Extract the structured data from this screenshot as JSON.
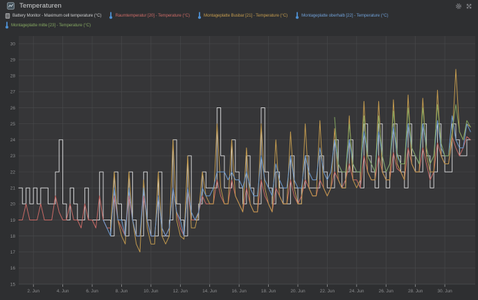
{
  "panel": {
    "title": "Temperaturen"
  },
  "header": {
    "icons": [
      {
        "name": "panel-chart-icon"
      },
      {
        "name": "gear-icon"
      },
      {
        "name": "expand-icon"
      }
    ]
  },
  "colors": {
    "background": "#2e2f31",
    "plot_background": "#363638",
    "gridline": "#47484a",
    "tick_text": "#8f9092",
    "title_text": "#d4d5d6",
    "thermometer_icon": "#4d8fd1",
    "battery": "#d2d3d4",
    "raumtemperatur": "#ca6a66",
    "busbar": "#c29a4e",
    "oberhalb": "#6f9ed4",
    "mitte": "#83a560"
  },
  "legend": [
    {
      "label": "Battery Monitor - Maximum cell temperature (°C)",
      "color": "#c9cacb",
      "icon": "box-icon"
    },
    {
      "label": "Raumtemperatur [20] - Temperature (°C)",
      "color": "#ca6a66",
      "icon": "thermometer-icon"
    },
    {
      "label": "Montageplatte Busbar [21] - Temperature (°C)",
      "color": "#c29a4e",
      "icon": "thermometer-icon"
    },
    {
      "label": "Montageplatte oberhalb [22] - Temperature (°C)",
      "color": "#6f9ed4",
      "icon": "thermometer-icon"
    },
    {
      "label": "Montageplatte mitte [23] - Temperature (°C)",
      "color": "#83a560",
      "icon": "thermometer-icon"
    }
  ],
  "chart_data": {
    "type": "line",
    "title": "Temperaturen",
    "xlabel": "",
    "ylabel": "Temperature (°C)",
    "ylim": [
      15,
      30
    ],
    "y_ticks": [
      30,
      29,
      28,
      27,
      26,
      25,
      24,
      23,
      22,
      21,
      20,
      19,
      18,
      17,
      16,
      15
    ],
    "x_ticks": [
      "2. Jun",
      "4. Jun",
      "6. Jun",
      "8. Jun",
      "10. Jun",
      "12. Jun",
      "14. Jun",
      "16. Jun",
      "18. Jun",
      "20. Jun",
      "22. Jun",
      "24. Jun",
      "26. Jun",
      "28. Jun",
      "30. Jun"
    ],
    "x_range": [
      "1. Jun",
      "1. Jul"
    ],
    "sample_interval_hours": 6,
    "grid": true,
    "legend_position": "top",
    "series": [
      {
        "name": "Battery Monitor - Maximum cell temperature (°C)",
        "color": "#d2d3d4",
        "step": true,
        "values": [
          21,
          20,
          21,
          20,
          21,
          20,
          21,
          21,
          20,
          20,
          22,
          24,
          20,
          19,
          21,
          20,
          19,
          19,
          21,
          19,
          19,
          19,
          22,
          19,
          19,
          18,
          22,
          20,
          19,
          18,
          22,
          19,
          18,
          18,
          22,
          19,
          18,
          18,
          22,
          18,
          18,
          19,
          24,
          20,
          19,
          18,
          23,
          19,
          19,
          20,
          22,
          21,
          21,
          21,
          26,
          23,
          21,
          21,
          24,
          22,
          21,
          20,
          23,
          21,
          20,
          20,
          26,
          22,
          21,
          20,
          22,
          21,
          20,
          20,
          23,
          21,
          20,
          21,
          23,
          21,
          21,
          21,
          23,
          22,
          21,
          21,
          24,
          22,
          21,
          22,
          24,
          22,
          22,
          21,
          25,
          23,
          22,
          21,
          25,
          22,
          21,
          22,
          25,
          23,
          22,
          21,
          25,
          23,
          22,
          22,
          25,
          23,
          21,
          22,
          25,
          23,
          22,
          22,
          25,
          24,
          23,
          23,
          24,
          24
        ]
      },
      {
        "name": "Raumtemperatur [20] - Temperature (°C)",
        "color": "#ca6a66",
        "step": false,
        "values": [
          19,
          19,
          20,
          19,
          19,
          19,
          20,
          19,
          19,
          19,
          20.5,
          19.5,
          19,
          19,
          20,
          19,
          19,
          18.5,
          20,
          19,
          19,
          18.5,
          20.5,
          19,
          18.5,
          18.5,
          20.5,
          19,
          18.5,
          18,
          20.5,
          19,
          18,
          18,
          20.5,
          19,
          18,
          18,
          20.5,
          18.5,
          18,
          18.5,
          21,
          19.5,
          18.5,
          18,
          21,
          19,
          19,
          19.5,
          20.5,
          20,
          20,
          20,
          21.5,
          20.5,
          20,
          20,
          21.5,
          20.5,
          20,
          19.5,
          21,
          20,
          19.5,
          19.5,
          21.5,
          20.5,
          20,
          19.5,
          21,
          20.5,
          20,
          20,
          21.5,
          20.5,
          20,
          20.5,
          21.5,
          21,
          20.5,
          20.5,
          21.5,
          21,
          20.5,
          21,
          22,
          21.5,
          21,
          21.5,
          22.5,
          21.5,
          21.5,
          21,
          23,
          22,
          21.5,
          21.5,
          23,
          22,
          21.5,
          21.5,
          23.2,
          22.2,
          22,
          21.5,
          23.5,
          22.5,
          22,
          22,
          23.5,
          22.5,
          21.5,
          22,
          23.8,
          23,
          22.5,
          22.5,
          24.2,
          23.5,
          23,
          23.5,
          24.2,
          24
        ]
      },
      {
        "name": "Montageplatte Busbar [21] - Temperature (°C)",
        "color": "#c29a4e",
        "step": false,
        "values": [
          null,
          null,
          null,
          null,
          null,
          null,
          null,
          null,
          null,
          null,
          null,
          null,
          null,
          null,
          null,
          null,
          null,
          null,
          null,
          null,
          null,
          null,
          null,
          null,
          null,
          18.5,
          22,
          19,
          18,
          17.5,
          22,
          19,
          17.5,
          17,
          21.5,
          18.5,
          17.5,
          17.5,
          22,
          18,
          17.5,
          18,
          24,
          19,
          18,
          17.8,
          23,
          18.5,
          18.5,
          19.5,
          22,
          20.5,
          20,
          20,
          25,
          21,
          20,
          20,
          24,
          20.5,
          20,
          19.5,
          23.5,
          20,
          19.5,
          19.5,
          25,
          21,
          20,
          19.5,
          24,
          20.5,
          20,
          20,
          24.5,
          21,
          20,
          20,
          25,
          21,
          20.5,
          20.5,
          25.2,
          21,
          20.5,
          21,
          24.7,
          21.5,
          21,
          21,
          25.5,
          21.5,
          21,
          21.5,
          26.4,
          22,
          21.5,
          21.5,
          26.4,
          22,
          21.5,
          21.5,
          26.5,
          22.5,
          22,
          21.5,
          26.8,
          22.5,
          22,
          22,
          26.6,
          23,
          22,
          22,
          27.1,
          23,
          22.5,
          22.5,
          24,
          28.4,
          24.5,
          24,
          25,
          24.8
        ]
      },
      {
        "name": "Montageplatte oberhalb [22] - Temperature (°C)",
        "color": "#6f9ed4",
        "step": false,
        "values": [
          null,
          null,
          null,
          null,
          null,
          null,
          null,
          null,
          null,
          null,
          null,
          null,
          null,
          null,
          null,
          null,
          null,
          null,
          null,
          null,
          null,
          null,
          null,
          19,
          18.5,
          18,
          21,
          19,
          19,
          18,
          21,
          19,
          18,
          18,
          21,
          19,
          18,
          18,
          20.5,
          18.5,
          18,
          18.5,
          21,
          19.5,
          19,
          18,
          21,
          19.5,
          19,
          19.5,
          21,
          20.5,
          20.5,
          21,
          22,
          22,
          22,
          21.5,
          22,
          21.5,
          21.5,
          21,
          22,
          21,
          20.5,
          20.5,
          23,
          21.5,
          21,
          20.5,
          22.5,
          21.5,
          21,
          21,
          23,
          21.5,
          21,
          21,
          23,
          22,
          21.5,
          21.5,
          23.5,
          22,
          21.5,
          22,
          24,
          22.5,
          22,
          22,
          24,
          22.5,
          22,
          22,
          24.5,
          23,
          22.5,
          22,
          24.5,
          23,
          22,
          22.5,
          24.8,
          23,
          22.5,
          22.5,
          25,
          23.5,
          23,
          22.5,
          25,
          23.5,
          22.5,
          23,
          25.2,
          23.5,
          23,
          23,
          25.5,
          24,
          23.5,
          23.5,
          25,
          24.5
        ]
      },
      {
        "name": "Montageplatte mitte [23] - Temperature (°C)",
        "color": "#83a560",
        "step": false,
        "values": [
          null,
          null,
          null,
          null,
          null,
          null,
          null,
          null,
          null,
          null,
          null,
          null,
          null,
          null,
          null,
          null,
          null,
          null,
          null,
          null,
          null,
          null,
          null,
          null,
          null,
          null,
          null,
          null,
          null,
          null,
          null,
          null,
          null,
          null,
          null,
          null,
          null,
          null,
          null,
          null,
          null,
          null,
          null,
          null,
          null,
          null,
          null,
          null,
          null,
          null,
          null,
          null,
          null,
          null,
          null,
          null,
          null,
          null,
          null,
          null,
          null,
          null,
          null,
          null,
          null,
          null,
          null,
          null,
          null,
          null,
          null,
          null,
          null,
          null,
          null,
          null,
          null,
          null,
          null,
          null,
          null,
          null,
          null,
          null,
          null,
          null,
          25.4,
          22.5,
          22,
          22,
          25,
          22.5,
          22,
          22,
          25.5,
          23,
          22.5,
          22,
          25.5,
          23,
          22,
          22.5,
          25.8,
          23.2,
          22.5,
          22.5,
          26,
          23.5,
          23,
          22.5,
          26,
          23.5,
          22.5,
          23,
          26.2,
          23.8,
          23,
          23,
          24.5,
          26.2,
          24.5,
          24,
          25.2,
          24.8
        ]
      }
    ]
  }
}
